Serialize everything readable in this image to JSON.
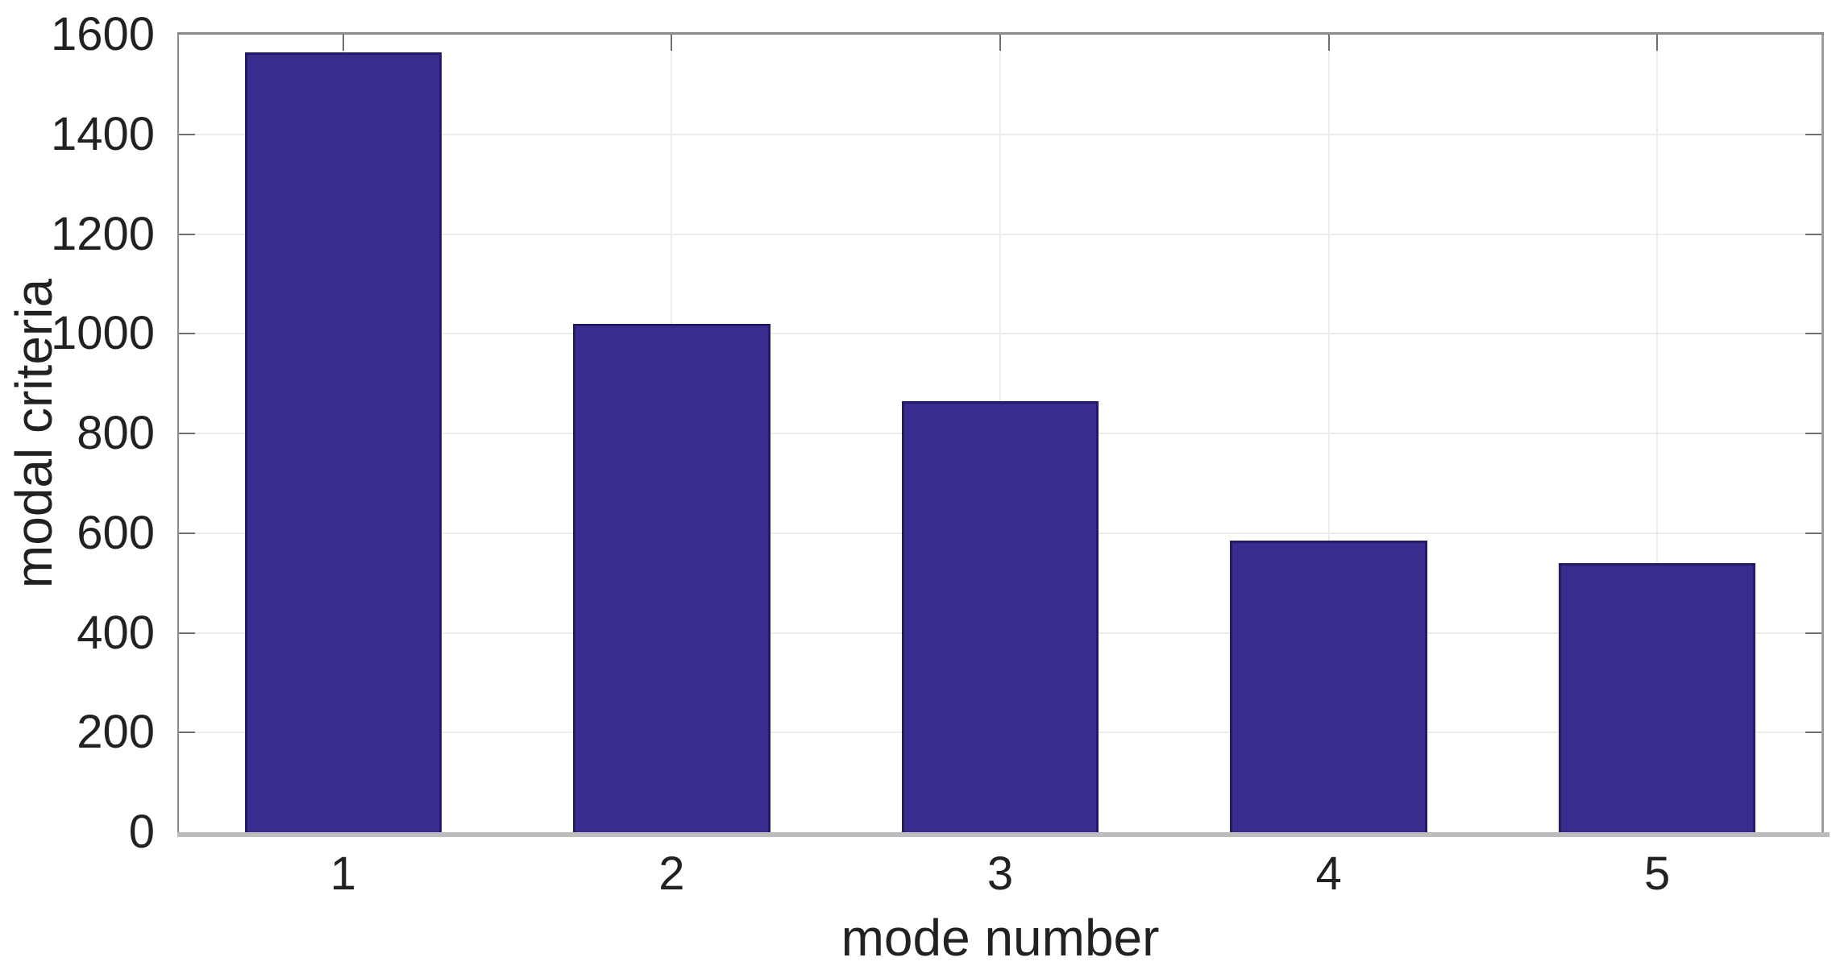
{
  "chart_data": {
    "type": "bar",
    "title": "",
    "xlabel": "mode number",
    "ylabel": "modal criteria",
    "categories": [
      "1",
      "2",
      "3",
      "4",
      "5"
    ],
    "values": [
      1565,
      1020,
      865,
      585,
      540
    ],
    "series_name": "modal criteria",
    "ylim": [
      0,
      1600
    ],
    "ytick_interval": 200,
    "ytick_labels": [
      "0",
      "200",
      "400",
      "600",
      "800",
      "1000",
      "1200",
      "1400",
      "1600"
    ],
    "grid": "on",
    "legend": "none",
    "box": "on",
    "tick_direction": "in",
    "bar_width_fraction": 0.6,
    "colors": {
      "bar_fill": "#382c8e",
      "bar_edge": "#221c66",
      "grid_line": "#ececec",
      "axis_line": "#8a8a8a",
      "axis_right_line": "#9d9d9d",
      "axis_bottom_line": "#bdbdbd",
      "tick_mark": "#707070",
      "text": "#212121",
      "background": "#ffffff"
    }
  }
}
